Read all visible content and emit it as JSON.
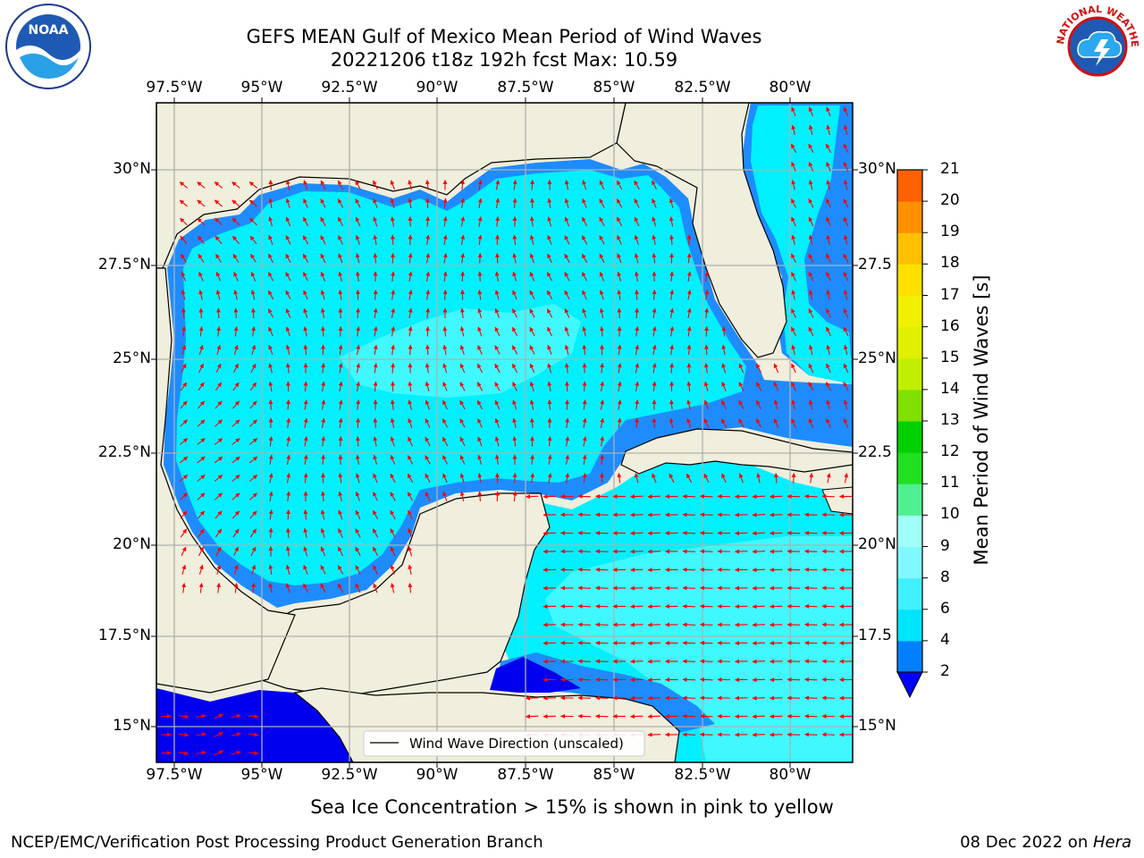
{
  "title_line1": "GEFS MEAN Gulf of Mexico Mean Period of Wind Waves",
  "title_line2": "20221206 t18z 192h fcst   Max: 10.59",
  "lon_labels": [
    "97.5°W",
    "95°W",
    "92.5°W",
    "90°W",
    "87.5°W",
    "85°W",
    "82.5°W",
    "80°W"
  ],
  "lat_labels_left": [
    "30°N",
    "27.5°N",
    "25°N",
    "22.5°N",
    "20°N",
    "17.5°N",
    "15°N"
  ],
  "lat_labels_right": [
    "30°N",
    "27.5",
    "25°N",
    "22.5",
    "20°N",
    "17.5",
    "15°N"
  ],
  "legend_label": "Wind Wave Direction (unscaled)",
  "colorbar": {
    "label": "Mean Period of Wind Waves [s]",
    "ticks": [
      "2",
      "4",
      "6",
      "8",
      "9",
      "10",
      "11",
      "12",
      "13",
      "14",
      "15",
      "16",
      "17",
      "18",
      "19",
      "20",
      "21"
    ],
    "colors": [
      "#0080ff",
      "#00e5ff",
      "#40f0ff",
      "#80f8ff",
      "#a0fff8",
      "#50f090",
      "#20e020",
      "#00d000",
      "#80e000",
      "#c0f000",
      "#e0f000",
      "#f0f000",
      "#ffe000",
      "#ffc000",
      "#ff9000",
      "#ff6000",
      "#ff2000",
      "#ff0000"
    ],
    "extend_color": "#0000ff"
  },
  "subtitle": "Sea Ice Concentration > 15% is shown in pink to yellow",
  "footer_left": "NCEP/EMC/Verification Post Processing Product Generation Branch",
  "footer_right_date": "08 Dec 2022 on ",
  "footer_right_machine": "Hera",
  "logos": {
    "noaa_text": "NOAA",
    "nws_text": "NATIONAL WEATHER SERVICE"
  },
  "colors": {
    "land": "#f0eedc",
    "ocean_main": "#00f0ff",
    "ocean_light": "#40f8ff",
    "coast_band": "#1e8cff",
    "deep_blue": "#0000ee",
    "arrow": "#ff0000",
    "grid": "#b0b0b0"
  }
}
